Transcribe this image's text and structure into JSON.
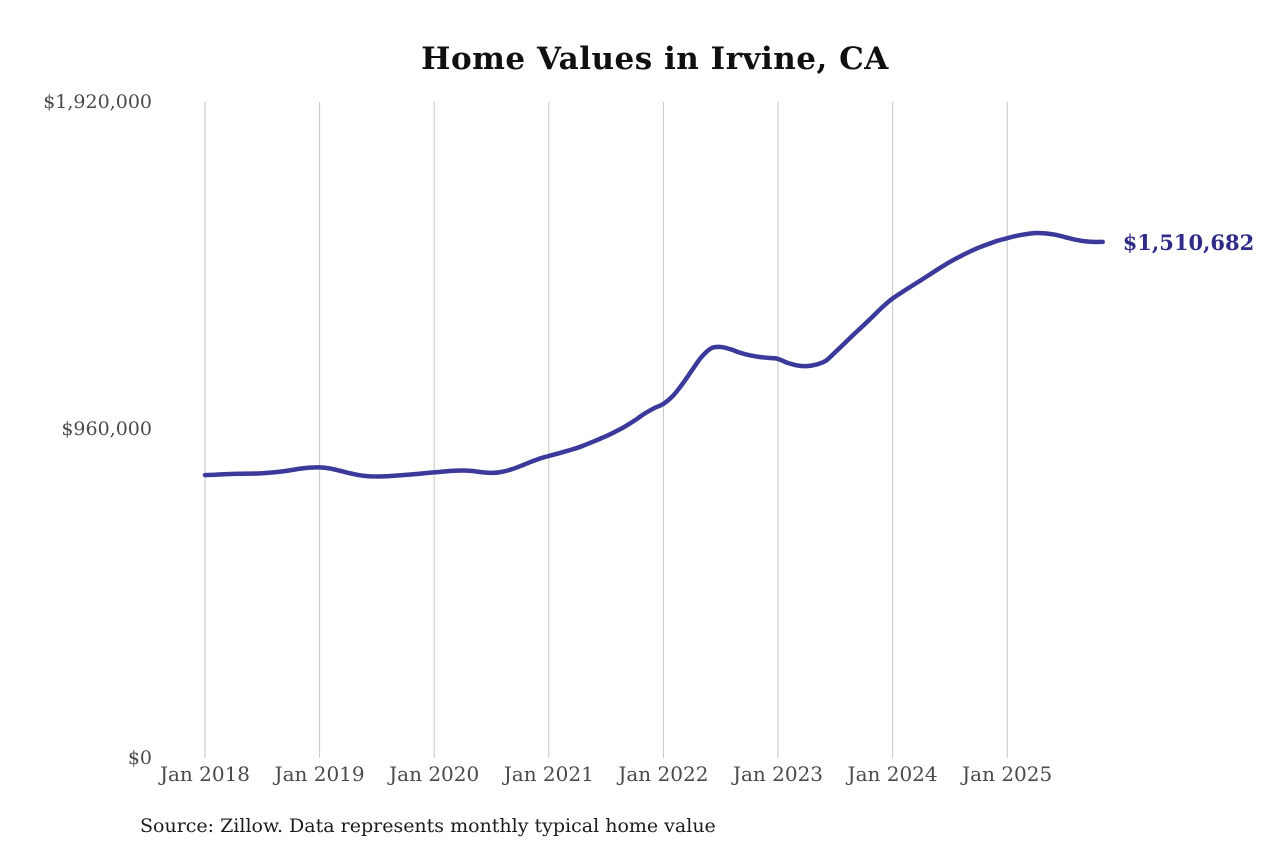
{
  "colors": {
    "line": "#3b3999",
    "end_label": "#2e2c88",
    "grid": "#c6c6c6",
    "axis_text": "#4a4a4a",
    "title_text": "#101010",
    "source_text": "#1c1c1c",
    "background": "#ffffff"
  },
  "chart_data": {
    "type": "line",
    "title": "Home Values in Irvine, CA",
    "source": "Source: Zillow. Data represents monthly typical home value",
    "end_annotation": "$1,510,682",
    "legend": "none",
    "grid": "vertical-only",
    "xlabel": "",
    "ylabel": "",
    "ylim": [
      0,
      1920000
    ],
    "y_tick_labels": [
      "$0",
      "$960,000",
      "$1,920,000"
    ],
    "y_tick_values": [
      0,
      960000,
      1920000
    ],
    "x_tick_labels": [
      "Jan 2018",
      "Jan 2019",
      "Jan 2020",
      "Jan 2021",
      "Jan 2022",
      "Jan 2023",
      "Jan 2024",
      "Jan 2025"
    ],
    "x_frequency": "monthly",
    "x": [
      "2018-01",
      "2018-02",
      "2018-03",
      "2018-04",
      "2018-05",
      "2018-06",
      "2018-07",
      "2018-08",
      "2018-09",
      "2018-10",
      "2018-11",
      "2018-12",
      "2019-01",
      "2019-02",
      "2019-03",
      "2019-04",
      "2019-05",
      "2019-06",
      "2019-07",
      "2019-08",
      "2019-09",
      "2019-10",
      "2019-11",
      "2019-12",
      "2020-01",
      "2020-02",
      "2020-03",
      "2020-04",
      "2020-05",
      "2020-06",
      "2020-07",
      "2020-08",
      "2020-09",
      "2020-10",
      "2020-11",
      "2020-12",
      "2021-01",
      "2021-02",
      "2021-03",
      "2021-04",
      "2021-05",
      "2021-06",
      "2021-07",
      "2021-08",
      "2021-09",
      "2021-10",
      "2021-11",
      "2021-12",
      "2022-01",
      "2022-02",
      "2022-03",
      "2022-04",
      "2022-05",
      "2022-06",
      "2022-07",
      "2022-08",
      "2022-09",
      "2022-10",
      "2022-11",
      "2022-12",
      "2023-01",
      "2023-02",
      "2023-03",
      "2023-04",
      "2023-05",
      "2023-06",
      "2023-07",
      "2023-08",
      "2023-09",
      "2023-10",
      "2023-11",
      "2023-12",
      "2024-01",
      "2024-02",
      "2024-03",
      "2024-04",
      "2024-05",
      "2024-06",
      "2024-07",
      "2024-08",
      "2024-09",
      "2024-10",
      "2024-11",
      "2024-12",
      "2025-01",
      "2025-02",
      "2025-03",
      "2025-04",
      "2025-05",
      "2025-06",
      "2025-07",
      "2025-08",
      "2025-09",
      "2025-10",
      "2025-11"
    ],
    "values": [
      828000,
      829000,
      830500,
      831500,
      832000,
      832500,
      833500,
      835500,
      838500,
      842500,
      847000,
      850000,
      850500,
      847500,
      841500,
      834500,
      828500,
      825000,
      824000,
      824500,
      826500,
      828500,
      831000,
      833500,
      836000,
      838500,
      840500,
      841500,
      840000,
      836500,
      834500,
      837000,
      844000,
      854000,
      865500,
      876000,
      884000,
      891500,
      899500,
      908000,
      918500,
      930000,
      942000,
      955500,
      970500,
      988000,
      1007500,
      1023500,
      1036500,
      1060000,
      1095000,
      1135000,
      1174000,
      1199000,
      1203000,
      1196500,
      1186500,
      1179000,
      1174000,
      1171000,
      1168000,
      1156500,
      1149000,
      1147000,
      1151500,
      1162500,
      1188000,
      1214500,
      1241500,
      1267500,
      1294500,
      1321500,
      1345000,
      1363500,
      1381500,
      1399000,
      1417000,
      1435000,
      1452000,
      1467000,
      1481000,
      1493500,
      1504000,
      1514000,
      1521500,
      1528500,
      1533500,
      1536500,
      1535500,
      1531500,
      1525000,
      1518000,
      1513000,
      1510500,
      1510682
    ]
  }
}
